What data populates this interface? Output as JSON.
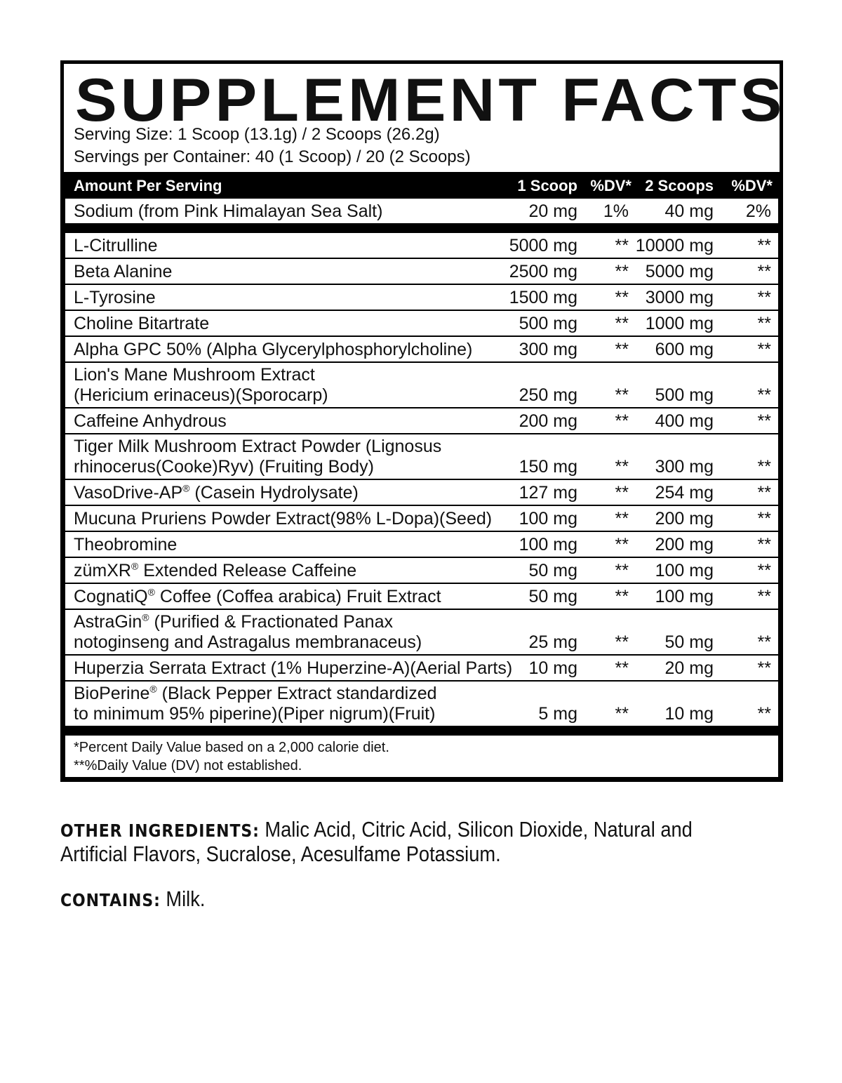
{
  "title": "SUPPLEMENT FACTS",
  "serving_size": "Serving Size: 1 Scoop (13.1g) / 2 Scoops (26.2g)",
  "servings_per_container": "Servings per Container: 40 (1 Scoop) / 20 (2 Scoops)",
  "header": {
    "label": "Amount Per Serving",
    "col1": "1 Scoop",
    "col2": "%DV*",
    "col3": "2 Scoops",
    "col4": "%DV*"
  },
  "sodium": {
    "name": "Sodium (from Pink Himalayan Sea Salt)",
    "a1": "20 mg",
    "d1": "1%",
    "a2": "40 mg",
    "d2": "2%"
  },
  "ingredients": [
    {
      "name": "L-Citrulline",
      "a1": "5000 mg",
      "d1": "**",
      "a2": "10000 mg",
      "d2": "**"
    },
    {
      "name": "Beta Alanine",
      "a1": "2500 mg",
      "d1": "**",
      "a2": "5000 mg",
      "d2": "**"
    },
    {
      "name": "L-Tyrosine",
      "a1": "1500 mg",
      "d1": "**",
      "a2": "3000 mg",
      "d2": "**"
    },
    {
      "name": "Choline Bitartrate",
      "a1": "500 mg",
      "d1": "**",
      "a2": "1000 mg",
      "d2": "**"
    },
    {
      "name": "Alpha GPC 50% (Alpha Glycerylphosphorylcholine)",
      "a1": "300 mg",
      "d1": "**",
      "a2": "600 mg",
      "d2": "**"
    },
    {
      "name": "Lion's Mane Mushroom Extract\n(Hericium erinaceus)(Sporocarp)",
      "a1": "250 mg",
      "d1": "**",
      "a2": "500 mg",
      "d2": "**"
    },
    {
      "name": "Caffeine Anhydrous",
      "a1": "200 mg",
      "d1": "**",
      "a2": "400 mg",
      "d2": "**"
    },
    {
      "name": "Tiger Milk Mushroom Extract Powder (Lignosus\nrhinocerus(Cooke)Ryv) (Fruiting Body)",
      "a1": "150 mg",
      "d1": "**",
      "a2": "300 mg",
      "d2": "**"
    },
    {
      "name": "VasoDrive-AP® (Casein Hydrolysate)",
      "a1": "127 mg",
      "d1": "**",
      "a2": "254 mg",
      "d2": "**"
    },
    {
      "name": "Mucuna Pruriens Powder Extract(98% L-Dopa)(Seed)",
      "a1": "100 mg",
      "d1": "**",
      "a2": "200 mg",
      "d2": "**"
    },
    {
      "name": "Theobromine",
      "a1": "100 mg",
      "d1": "**",
      "a2": "200 mg",
      "d2": "**"
    },
    {
      "name": "zümXR® Extended Release Caffeine",
      "a1": "50 mg",
      "d1": "**",
      "a2": "100 mg",
      "d2": "**"
    },
    {
      "name": "CognatiQ® Coffee (Coffea arabica) Fruit Extract",
      "a1": "50 mg",
      "d1": "**",
      "a2": "100 mg",
      "d2": "**"
    },
    {
      "name": "AstraGin® (Purified & Fractionated Panax\nnotoginseng and Astragalus membranaceus)",
      "a1": "25 mg",
      "d1": "**",
      "a2": "50 mg",
      "d2": "**"
    },
    {
      "name": "Huperzia Serrata Extract (1% Huperzine-A)(Aerial Parts)",
      "a1": "10 mg",
      "d1": "**",
      "a2": "20 mg",
      "d2": "**"
    },
    {
      "name": "BioPerine® (Black Pepper Extract standardized\nto minimum 95% piperine)(Piper nigrum)(Fruit)",
      "a1": "5 mg",
      "d1": "**",
      "a2": "10 mg",
      "d2": "**"
    }
  ],
  "footnotes": [
    "*Percent Daily Value based on a 2,000 calorie diet.",
    "**%Daily Value (DV) not established."
  ],
  "other_ingredients": {
    "label": "OTHER INGREDIENTS:",
    "line1": "Malic Acid, Citric Acid, Silicon Dioxide, Natural and",
    "line2": "Artificial Flavors, Sucralose, Acesulfame Potassium."
  },
  "contains": {
    "label": "CONTAINS:",
    "text": "Milk."
  }
}
